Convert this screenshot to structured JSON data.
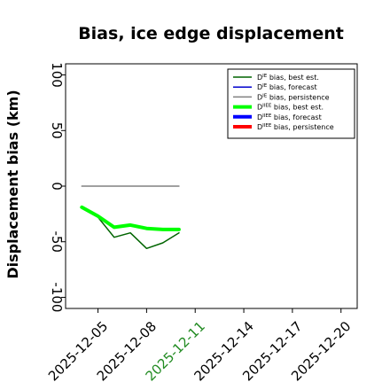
{
  "chart_data": {
    "type": "line",
    "title": "Bias, ice edge displacement",
    "xlabel": "",
    "ylabel": "Displacement bias (km)",
    "xlim": [
      "2025-12-03",
      "2025-12-21"
    ],
    "ylim": [
      -110,
      110
    ],
    "yticks": [
      100,
      50,
      0,
      -50,
      -100
    ],
    "xticks": [
      {
        "date": "2025-12-05",
        "label": "2025-12-05",
        "color": "#000000"
      },
      {
        "date": "2025-12-08",
        "label": "2025-12-08",
        "color": "#000000"
      },
      {
        "date": "2025-12-11",
        "label": "2025-12-11",
        "color": "#228b22"
      },
      {
        "date": "2025-12-14",
        "label": "2025-12-14",
        "color": "#000000"
      },
      {
        "date": "2025-12-17",
        "label": "2025-12-17",
        "color": "#000000"
      },
      {
        "date": "2025-12-20",
        "label": "2025-12-20",
        "color": "#000000"
      }
    ],
    "grid": false,
    "legend_position": "top-right",
    "series": [
      {
        "name": "D^IE bias, best est.",
        "style": "thin",
        "color": "#006400",
        "x": [
          "2025-12-04",
          "2025-12-05",
          "2025-12-06",
          "2025-12-07",
          "2025-12-08",
          "2025-12-09",
          "2025-12-10"
        ],
        "y": [
          -20,
          -28,
          -46,
          -42,
          -56,
          -51,
          -42
        ]
      },
      {
        "name": "D^IE bias, forecast",
        "style": "thin",
        "color": "#0000cd",
        "x": [],
        "y": []
      },
      {
        "name": "D^IE bias, persistence",
        "style": "thin",
        "color": "#808080",
        "x": [
          "2025-12-04",
          "2025-12-10"
        ],
        "y": [
          0,
          0
        ]
      },
      {
        "name": "D^IIEE bias, best est.",
        "style": "thick",
        "color": "#00ff00",
        "x": [
          "2025-12-04",
          "2025-12-05",
          "2025-12-06",
          "2025-12-07",
          "2025-12-08",
          "2025-12-09",
          "2025-12-10"
        ],
        "y": [
          -19,
          -27,
          -37,
          -35,
          -38,
          -39,
          -39
        ]
      },
      {
        "name": "D^IIEE bias, forecast",
        "style": "thick",
        "color": "#0000ff",
        "x": [],
        "y": []
      },
      {
        "name": "D^IIEE bias, persistence",
        "style": "thick",
        "color": "#ff0000",
        "x": [],
        "y": []
      }
    ]
  }
}
